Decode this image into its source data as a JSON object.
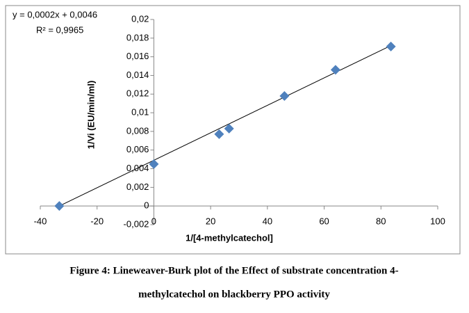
{
  "chart_data": {
    "type": "scatter",
    "caption": [
      "Figure 4: Lineweaver-Burk plot of the Effect of substrate concentration 4-",
      "methylcatechol on blackberry PPO activity"
    ],
    "annotations": [
      "y = 0,0002x + 0,0046",
      "R² = 0,9965"
    ],
    "x_label": "1/[4-methylcatechol]",
    "y_label": "1/Vi (EU/min/ml)",
    "series": [
      {
        "name": "1/Vi",
        "color": "#4f81bd",
        "x": [
          -33.3,
          0,
          23,
          26.5,
          46,
          64,
          83.5
        ],
        "values": [
          0,
          0.0045,
          0.0077,
          0.0083,
          0.0118,
          0.0146,
          0.0171
        ]
      }
    ],
    "trendline": {
      "x": [
        -33.3,
        83.5
      ],
      "values": [
        0,
        0.0172
      ],
      "color": "#000000"
    },
    "xlim": [
      -40,
      100
    ],
    "xticks": [
      -40,
      -20,
      0,
      20,
      40,
      60,
      80,
      100
    ],
    "ylim": [
      -0.002,
      0.02
    ],
    "yticks": [
      {
        "value": -0.002,
        "label": "-0,002"
      },
      0,
      {
        "value": 0.002,
        "label": "0,002"
      },
      {
        "value": 0.004,
        "label": "0,004"
      },
      {
        "value": 0.006,
        "label": "0,006"
      },
      {
        "value": 0.008,
        "label": "0,008"
      },
      {
        "value": 0.01,
        "label": "0,01"
      },
      {
        "value": 0.012,
        "label": "0,012"
      },
      {
        "value": 0.014,
        "label": "0,014"
      },
      {
        "value": 0.016,
        "label": "0,016"
      },
      {
        "value": 0.018,
        "label": "0,018"
      },
      {
        "value": 0.02,
        "label": "0,02"
      }
    ],
    "grid": false
  }
}
